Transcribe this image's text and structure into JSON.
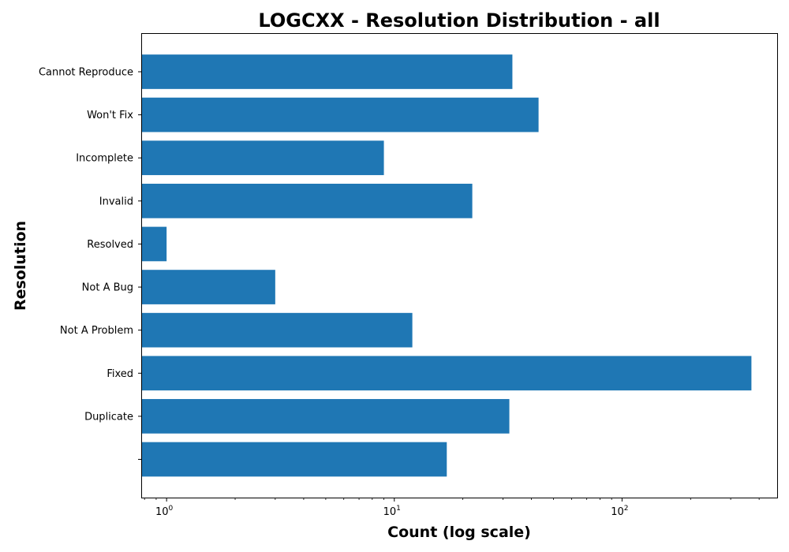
{
  "chart_data": {
    "type": "bar",
    "orientation": "horizontal",
    "title": "LOGCXX - Resolution Distribution - all",
    "xlabel": "Count (log scale)",
    "ylabel": "Resolution",
    "x_scale": "log",
    "xlim": [
      0.78,
      480
    ],
    "x_ticks": [
      {
        "value": 1,
        "base": "10",
        "exp": "0"
      },
      {
        "value": 10,
        "base": "10",
        "exp": "1"
      },
      {
        "value": 100,
        "base": "10",
        "exp": "2"
      }
    ],
    "categories": [
      "",
      "Duplicate",
      "Fixed",
      "Not A Problem",
      "Not A Bug",
      "Resolved",
      "Invalid",
      "Incomplete",
      "Won't Fix",
      "Cannot Reproduce"
    ],
    "values": [
      17,
      32,
      370,
      12,
      3,
      1,
      22,
      9,
      43,
      33
    ],
    "bar_color": "#1f77b4",
    "grid": false,
    "legend": "none"
  }
}
